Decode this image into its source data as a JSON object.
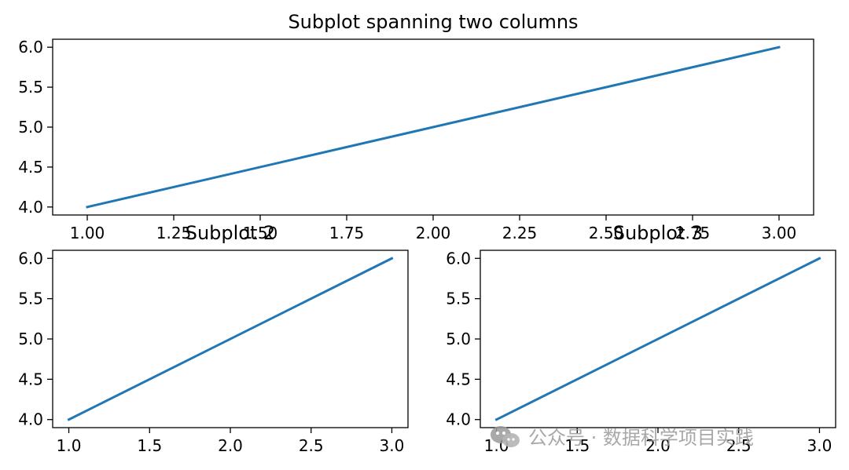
{
  "chart_data": [
    {
      "type": "line",
      "title": "Subplot spanning two columns",
      "x": [
        1.0,
        3.0
      ],
      "y": [
        4.0,
        6.0
      ],
      "xlim": [
        0.9,
        3.1
      ],
      "ylim": [
        3.9,
        6.1
      ],
      "xticks": [
        "1.00",
        "1.25",
        "1.50",
        "1.75",
        "2.00",
        "2.25",
        "2.50",
        "2.75",
        "3.00"
      ],
      "yticks": [
        "4.0",
        "4.5",
        "5.0",
        "5.5",
        "6.0"
      ],
      "grid": false,
      "color": "#1f77b4"
    },
    {
      "type": "line",
      "title": "Subplot 2",
      "x": [
        1.0,
        3.0
      ],
      "y": [
        4.0,
        6.0
      ],
      "xlim": [
        0.9,
        3.1
      ],
      "ylim": [
        3.9,
        6.1
      ],
      "xticks": [
        "1.0",
        "1.5",
        "2.0",
        "2.5",
        "3.0"
      ],
      "yticks": [
        "4.0",
        "4.5",
        "5.0",
        "5.5",
        "6.0"
      ],
      "grid": false,
      "color": "#1f77b4"
    },
    {
      "type": "line",
      "title": "Subplot 3",
      "x": [
        1.0,
        3.0
      ],
      "y": [
        4.0,
        6.0
      ],
      "xlim": [
        0.9,
        3.1
      ],
      "ylim": [
        3.9,
        6.1
      ],
      "xticks": [
        "1.0",
        "1.5",
        "2.0",
        "2.5",
        "3.0"
      ],
      "yticks": [
        "4.0",
        "4.5",
        "5.0",
        "5.5",
        "6.0"
      ],
      "grid": false,
      "color": "#1f77b4"
    }
  ],
  "watermark": {
    "icon": "wechat-icon",
    "text": "公众号 · 数据科学项目实践"
  }
}
